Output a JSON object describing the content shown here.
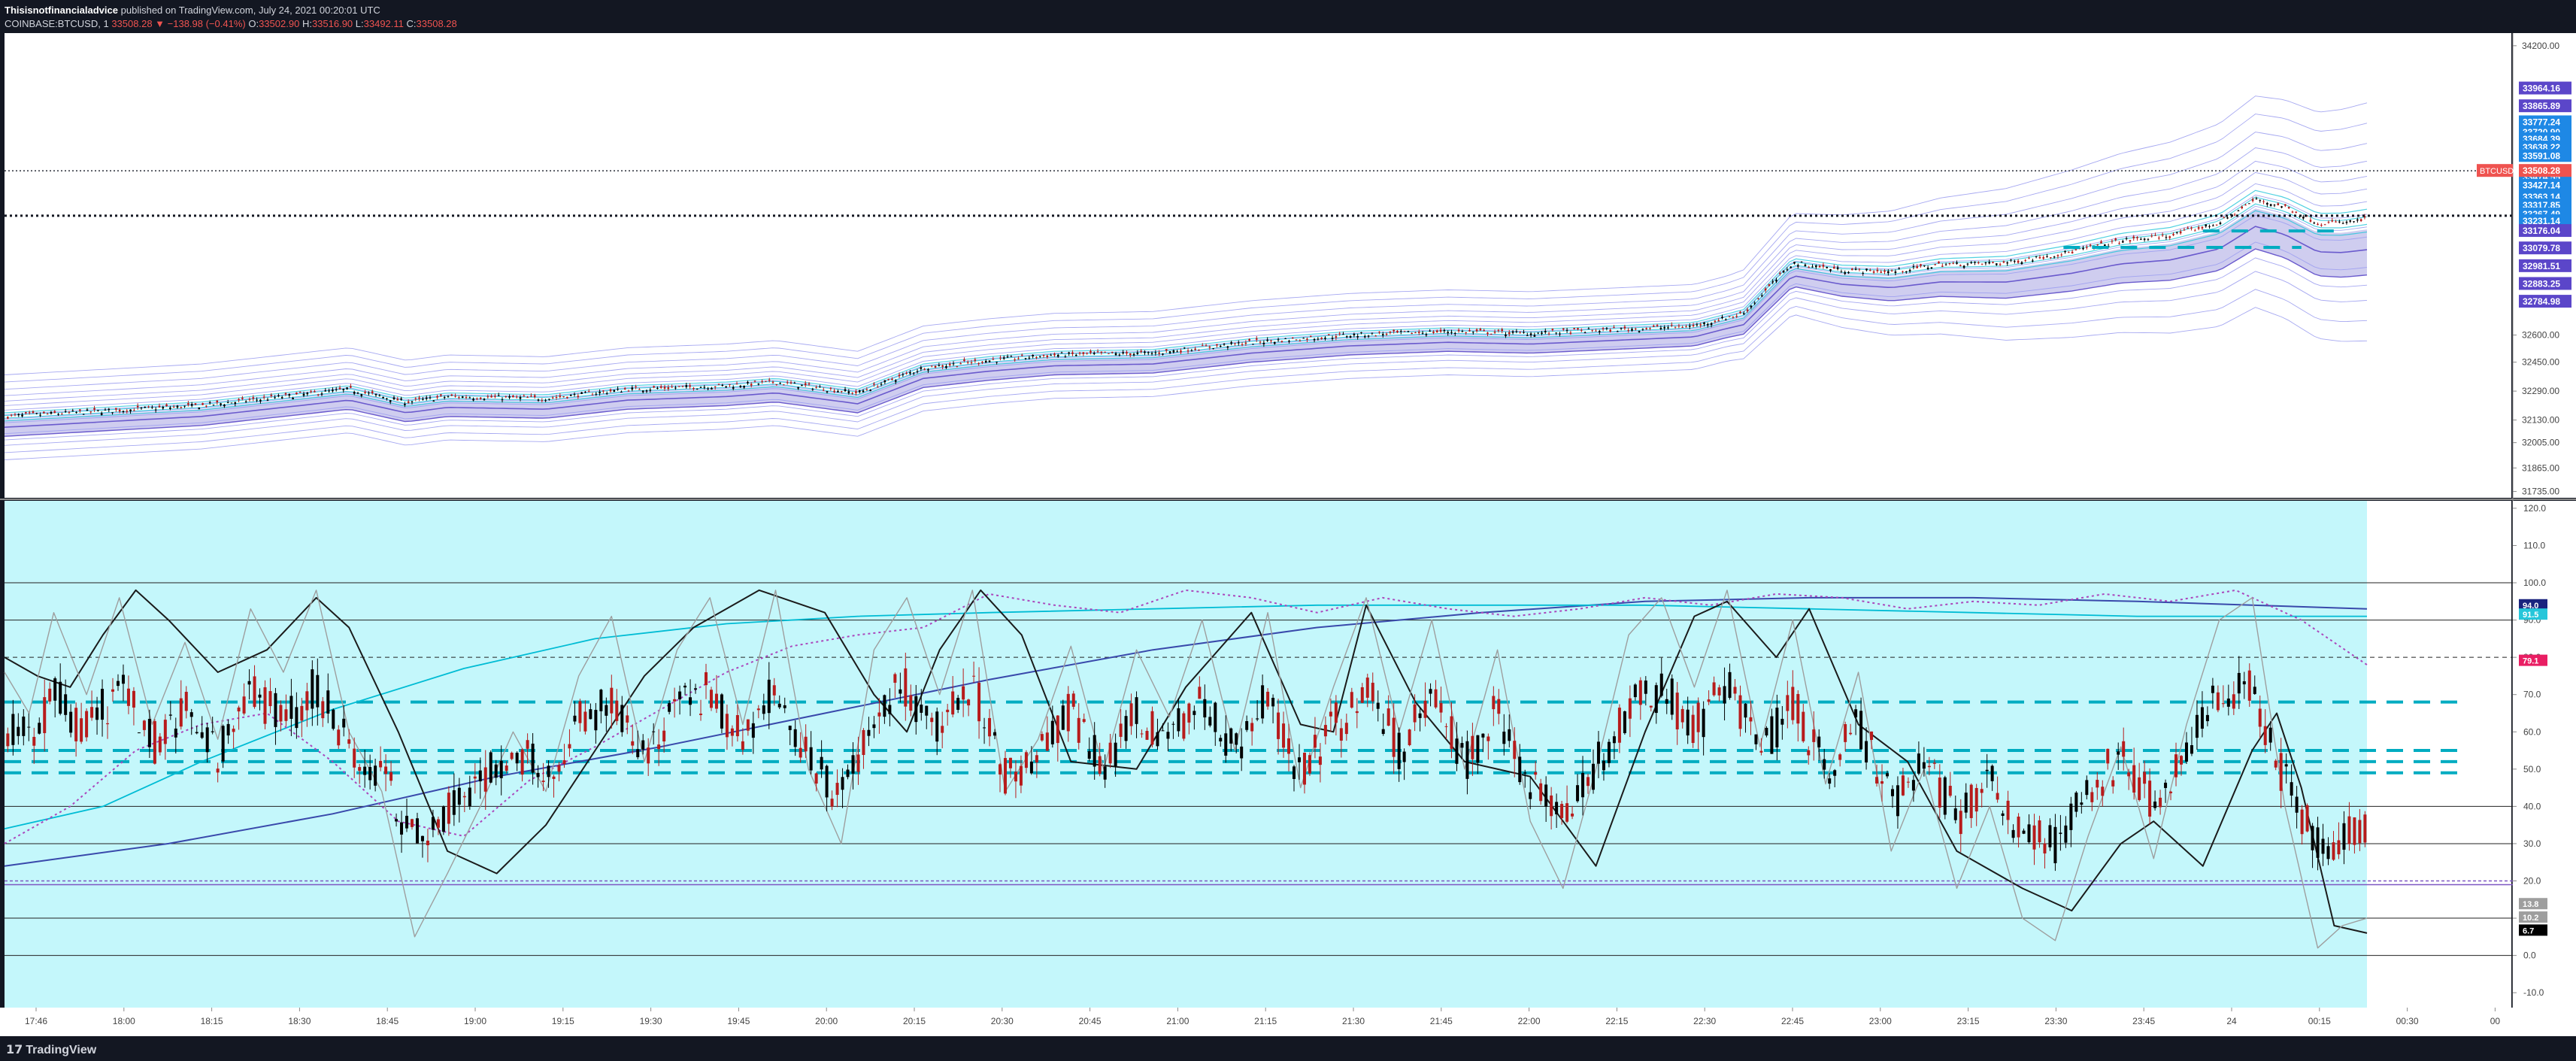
{
  "header": {
    "author": "Thisisnotfinancialadvice",
    "published_text": "published on TradingView.com, July 24, 2021 00:20:01 UTC",
    "symbol": "COINBASE:BTCUSD, 1",
    "change": "33508.28 ▼ −138.98 (−0.41%)",
    "o_label": "O:",
    "o_value": "33502.90",
    "h_label": "H:",
    "h_value": "33516.90",
    "l_label": "L:",
    "l_value": "33492.11",
    "c_label": "C:",
    "c_value": "33508.28"
  },
  "footer": {
    "brand": "TradingView",
    "logo_icon": "tradingview-logo-icon"
  },
  "colors": {
    "background": "#131722",
    "price_bg": "#ffffff",
    "osc_bg": "#c4f7fb",
    "up_candle": "#000000",
    "down_candle": "#b71c1c",
    "band_light": "#9c9ef0",
    "band_fill": "#c7c4ec",
    "band_cyan": "#26c6da",
    "dash_teal": "#00acc1",
    "last_price": "#ef5350",
    "label_purple": "#5b46c9",
    "label_blue": "#1e88e5"
  },
  "chart_data": [
    {
      "type": "candlestick",
      "panel": "price",
      "symbol": "BTCUSD",
      "interval": "1",
      "x_ticks": [
        "17:46",
        "18:00",
        "18:15",
        "18:30",
        "18:45",
        "19:00",
        "19:15",
        "19:30",
        "19:45",
        "20:00",
        "20:15",
        "20:30",
        "20:45",
        "21:00",
        "21:15",
        "21:30",
        "21:45",
        "22:00",
        "22:15",
        "22:30",
        "22:45",
        "23:00",
        "23:15",
        "23:30",
        "23:45",
        "24",
        "00:15",
        "00:30",
        "00"
      ],
      "y_ticks": [
        34200.0,
        32600.0,
        32450.0,
        32290.0,
        32130.0,
        32005.0,
        31865.0,
        31735.0
      ],
      "ylim": [
        31700,
        34270
      ],
      "price_path": [
        [
          0,
          32150
        ],
        [
          60,
          32180
        ],
        [
          120,
          32210
        ],
        [
          180,
          32270
        ],
        [
          210,
          32300
        ],
        [
          245,
          32230
        ],
        [
          270,
          32260
        ],
        [
          330,
          32250
        ],
        [
          380,
          32300
        ],
        [
          440,
          32320
        ],
        [
          470,
          32340
        ],
        [
          520,
          32280
        ],
        [
          560,
          32420
        ],
        [
          600,
          32460
        ],
        [
          640,
          32490
        ],
        [
          700,
          32500
        ],
        [
          760,
          32560
        ],
        [
          820,
          32600
        ],
        [
          880,
          32620
        ],
        [
          930,
          32610
        ],
        [
          980,
          32630
        ],
        [
          1030,
          32650
        ],
        [
          1060,
          32720
        ],
        [
          1090,
          33000
        ],
        [
          1120,
          32960
        ],
        [
          1150,
          32950
        ],
        [
          1180,
          32990
        ],
        [
          1220,
          33000
        ],
        [
          1260,
          33060
        ],
        [
          1290,
          33120
        ],
        [
          1320,
          33150
        ],
        [
          1350,
          33220
        ],
        [
          1372,
          33350
        ],
        [
          1390,
          33310
        ],
        [
          1410,
          33220
        ],
        [
          1425,
          33220
        ],
        [
          1440,
          33240
        ]
      ],
      "last_price_label": "BTCUSD",
      "last_price": 33508.28,
      "price_labels": [
        {
          "value": 33964.16,
          "kind": "purple"
        },
        {
          "value": 33865.89,
          "kind": "purple"
        },
        {
          "value": 33777.24,
          "kind": "cyan"
        },
        {
          "value": 33720.9,
          "kind": "cyan"
        },
        {
          "value": 33684.39,
          "kind": "cyan"
        },
        {
          "value": 33638.22,
          "kind": "cyan"
        },
        {
          "value": 33591.08,
          "kind": "cyan"
        },
        {
          "value": 33474.55,
          "kind": "cyan"
        },
        {
          "value": 33427.14,
          "kind": "cyan"
        },
        {
          "value": 33363.14,
          "kind": "cyan"
        },
        {
          "value": 33317.85,
          "kind": "cyan"
        },
        {
          "value": 33267.49,
          "kind": "cyan"
        },
        {
          "value": 33231.14,
          "kind": "cyan"
        },
        {
          "value": 33176.04,
          "kind": "purple"
        },
        {
          "value": 33079.78,
          "kind": "purple"
        },
        {
          "value": 32981.51,
          "kind": "purple"
        },
        {
          "value": 32883.25,
          "kind": "purple"
        },
        {
          "value": 32784.98,
          "kind": "purple"
        }
      ]
    },
    {
      "type": "line",
      "panel": "oscillator",
      "y_ticks": [
        120.0,
        110.0,
        100.0,
        90.0,
        80.0,
        70.0,
        60.0,
        50.0,
        40.0,
        30.0,
        20.0,
        10.0,
        0.0,
        -10.0
      ],
      "ylim": [
        -14,
        122
      ],
      "h_lines": [
        100,
        90,
        40,
        30,
        10,
        0
      ],
      "dashed_lines": [
        80
      ],
      "teal_dash_levels": [
        68,
        55,
        52,
        49
      ],
      "purple_band": [
        20,
        19
      ],
      "value_labels": [
        {
          "text": "94.0",
          "value": 94.0,
          "kind": "navy"
        },
        {
          "text": "91.5",
          "value": 91.5,
          "kind": "cyan"
        },
        {
          "text": "79.1",
          "value": 79.1,
          "kind": "magenta"
        },
        {
          "text": "13.8",
          "value": 13.8,
          "kind": "grey"
        },
        {
          "text": "10.2",
          "value": 10.2,
          "kind": "grey"
        },
        {
          "text": "6.7",
          "value": 6.7,
          "kind": "black"
        }
      ],
      "series": [
        {
          "style": "blue-curve",
          "values": [
            [
              0,
              24
            ],
            [
              100,
              30
            ],
            [
              200,
              38
            ],
            [
              300,
              48
            ],
            [
              400,
              56
            ],
            [
              500,
              65
            ],
            [
              600,
              74
            ],
            [
              700,
              82
            ],
            [
              800,
              88
            ],
            [
              900,
              92
            ],
            [
              1000,
              95
            ],
            [
              1100,
              96
            ],
            [
              1200,
              96
            ],
            [
              1300,
              95
            ],
            [
              1440,
              93
            ]
          ]
        },
        {
          "style": "cyan-curve",
          "values": [
            [
              0,
              34
            ],
            [
              60,
              40
            ],
            [
              120,
              52
            ],
            [
              200,
              66
            ],
            [
              280,
              77
            ],
            [
              360,
              85
            ],
            [
              440,
              89
            ],
            [
              520,
              91
            ],
            [
              600,
              92
            ],
            [
              700,
              93
            ],
            [
              800,
              94
            ],
            [
              900,
              94
            ],
            [
              1000,
              94
            ],
            [
              1100,
              93
            ],
            [
              1200,
              92
            ],
            [
              1300,
              91
            ],
            [
              1440,
              91
            ]
          ]
        },
        {
          "style": "magenta-dotted",
          "values": [
            [
              0,
              30
            ],
            [
              40,
              40
            ],
            [
              80,
              55
            ],
            [
              120,
              62
            ],
            [
              160,
              65
            ],
            [
              200,
              52
            ],
            [
              240,
              36
            ],
            [
              280,
              32
            ],
            [
              320,
              47
            ],
            [
              360,
              56
            ],
            [
              400,
              66
            ],
            [
              440,
              76
            ],
            [
              480,
              83
            ],
            [
              520,
              86
            ],
            [
              560,
              88
            ],
            [
              600,
              97
            ],
            [
              640,
              94
            ],
            [
              680,
              92
            ],
            [
              720,
              98
            ],
            [
              760,
              96
            ],
            [
              800,
              92
            ],
            [
              840,
              96
            ],
            [
              880,
              93
            ],
            [
              920,
              91
            ],
            [
              960,
              93
            ],
            [
              1000,
              96
            ],
            [
              1040,
              94
            ],
            [
              1080,
              97
            ],
            [
              1120,
              96
            ],
            [
              1160,
              93
            ],
            [
              1200,
              95
            ],
            [
              1240,
              94
            ],
            [
              1280,
              97
            ],
            [
              1320,
              95
            ],
            [
              1360,
              98
            ],
            [
              1400,
              90
            ],
            [
              1440,
              78
            ]
          ]
        },
        {
          "style": "black-wave",
          "values": [
            [
              0,
              80
            ],
            [
              20,
              75
            ],
            [
              40,
              72
            ],
            [
              60,
              86
            ],
            [
              80,
              98
            ],
            [
              100,
              90
            ],
            [
              130,
              76
            ],
            [
              160,
              82
            ],
            [
              190,
              96
            ],
            [
              210,
              88
            ],
            [
              240,
              60
            ],
            [
              270,
              28
            ],
            [
              300,
              22
            ],
            [
              330,
              35
            ],
            [
              360,
              55
            ],
            [
              390,
              75
            ],
            [
              420,
              88
            ],
            [
              460,
              98
            ],
            [
              500,
              92
            ],
            [
              530,
              70
            ],
            [
              550,
              60
            ],
            [
              570,
              82
            ],
            [
              595,
              98
            ],
            [
              620,
              86
            ],
            [
              650,
              52
            ],
            [
              690,
              50
            ],
            [
              720,
              72
            ],
            [
              760,
              92
            ],
            [
              790,
              62
            ],
            [
              810,
              60
            ],
            [
              830,
              94
            ],
            [
              860,
              68
            ],
            [
              890,
              52
            ],
            [
              930,
              48
            ],
            [
              970,
              24
            ],
            [
              1000,
              60
            ],
            [
              1030,
              91
            ],
            [
              1050,
              95
            ],
            [
              1080,
              80
            ],
            [
              1100,
              93
            ],
            [
              1130,
              62
            ],
            [
              1160,
              52
            ],
            [
              1190,
              28
            ],
            [
              1230,
              18
            ],
            [
              1260,
              12
            ],
            [
              1290,
              30
            ],
            [
              1310,
              36
            ],
            [
              1340,
              24
            ],
            [
              1370,
              55
            ],
            [
              1385,
              65
            ],
            [
              1400,
              45
            ],
            [
              1420,
              8
            ],
            [
              1440,
              6
            ]
          ]
        },
        {
          "style": "grey-noise",
          "values": [
            [
              0,
              76
            ],
            [
              15,
              65
            ],
            [
              30,
              92
            ],
            [
              50,
              70
            ],
            [
              70,
              96
            ],
            [
              90,
              62
            ],
            [
              110,
              84
            ],
            [
              130,
              58
            ],
            [
              150,
              93
            ],
            [
              170,
              76
            ],
            [
              190,
              98
            ],
            [
              210,
              60
            ],
            [
              230,
              44
            ],
            [
              250,
              5
            ],
            [
              270,
              22
            ],
            [
              290,
              40
            ],
            [
              310,
              60
            ],
            [
              330,
              44
            ],
            [
              350,
              75
            ],
            [
              370,
              91
            ],
            [
              390,
              52
            ],
            [
              410,
              82
            ],
            [
              430,
              96
            ],
            [
              450,
              62
            ],
            [
              470,
              98
            ],
            [
              490,
              50
            ],
            [
              510,
              30
            ],
            [
              530,
              82
            ],
            [
              550,
              96
            ],
            [
              570,
              70
            ],
            [
              590,
              98
            ],
            [
              610,
              44
            ],
            [
              630,
              58
            ],
            [
              650,
              83
            ],
            [
              670,
              50
            ],
            [
              690,
              82
            ],
            [
              710,
              64
            ],
            [
              730,
              90
            ],
            [
              750,
              55
            ],
            [
              770,
              92
            ],
            [
              790,
              45
            ],
            [
              810,
              72
            ],
            [
              830,
              96
            ],
            [
              850,
              60
            ],
            [
              870,
              90
            ],
            [
              890,
              50
            ],
            [
              910,
              82
            ],
            [
              930,
              36
            ],
            [
              950,
              18
            ],
            [
              970,
              50
            ],
            [
              990,
              86
            ],
            [
              1010,
              96
            ],
            [
              1030,
              72
            ],
            [
              1050,
              98
            ],
            [
              1070,
              56
            ],
            [
              1090,
              90
            ],
            [
              1110,
              46
            ],
            [
              1130,
              76
            ],
            [
              1150,
              28
            ],
            [
              1170,
              50
            ],
            [
              1190,
              18
            ],
            [
              1210,
              40
            ],
            [
              1230,
              10
            ],
            [
              1250,
              4
            ],
            [
              1270,
              32
            ],
            [
              1290,
              56
            ],
            [
              1310,
              26
            ],
            [
              1330,
              62
            ],
            [
              1350,
              90
            ],
            [
              1370,
              96
            ],
            [
              1390,
              40
            ],
            [
              1410,
              2
            ],
            [
              1425,
              8
            ],
            [
              1440,
              10
            ]
          ]
        }
      ]
    }
  ]
}
